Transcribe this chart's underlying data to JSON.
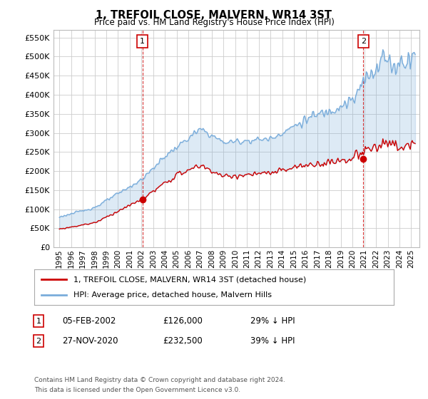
{
  "title": "1, TREFOIL CLOSE, MALVERN, WR14 3ST",
  "subtitle": "Price paid vs. HM Land Registry's House Price Index (HPI)",
  "ylim": [
    0,
    570000
  ],
  "yticks": [
    0,
    50000,
    100000,
    150000,
    200000,
    250000,
    300000,
    350000,
    400000,
    450000,
    500000,
    550000
  ],
  "ytick_labels": [
    "£0",
    "£50K",
    "£100K",
    "£150K",
    "£200K",
    "£250K",
    "£300K",
    "£350K",
    "£400K",
    "£450K",
    "£500K",
    "£550K"
  ],
  "hpi_color": "#7aaddb",
  "hpi_fill_color": "#d6e8f5",
  "price_color": "#cc0000",
  "vline_color": "#cc0000",
  "sale1_date": "05-FEB-2002",
  "sale1_price": "£126,000",
  "sale1_hpi_text": "29% ↓ HPI",
  "sale1_year": 2002.09,
  "sale1_value": 126000,
  "sale2_date": "27-NOV-2020",
  "sale2_price": "£232,500",
  "sale2_hpi_text": "39% ↓ HPI",
  "sale2_year": 2020.92,
  "sale2_value": 232500,
  "legend_label1": "1, TREFOIL CLOSE, MALVERN, WR14 3ST (detached house)",
  "legend_label2": "HPI: Average price, detached house, Malvern Hills",
  "footer1": "Contains HM Land Registry data © Crown copyright and database right 2024.",
  "footer2": "This data is licensed under the Open Government Licence v3.0.",
  "background_color": "#ffffff",
  "grid_color": "#cccccc"
}
